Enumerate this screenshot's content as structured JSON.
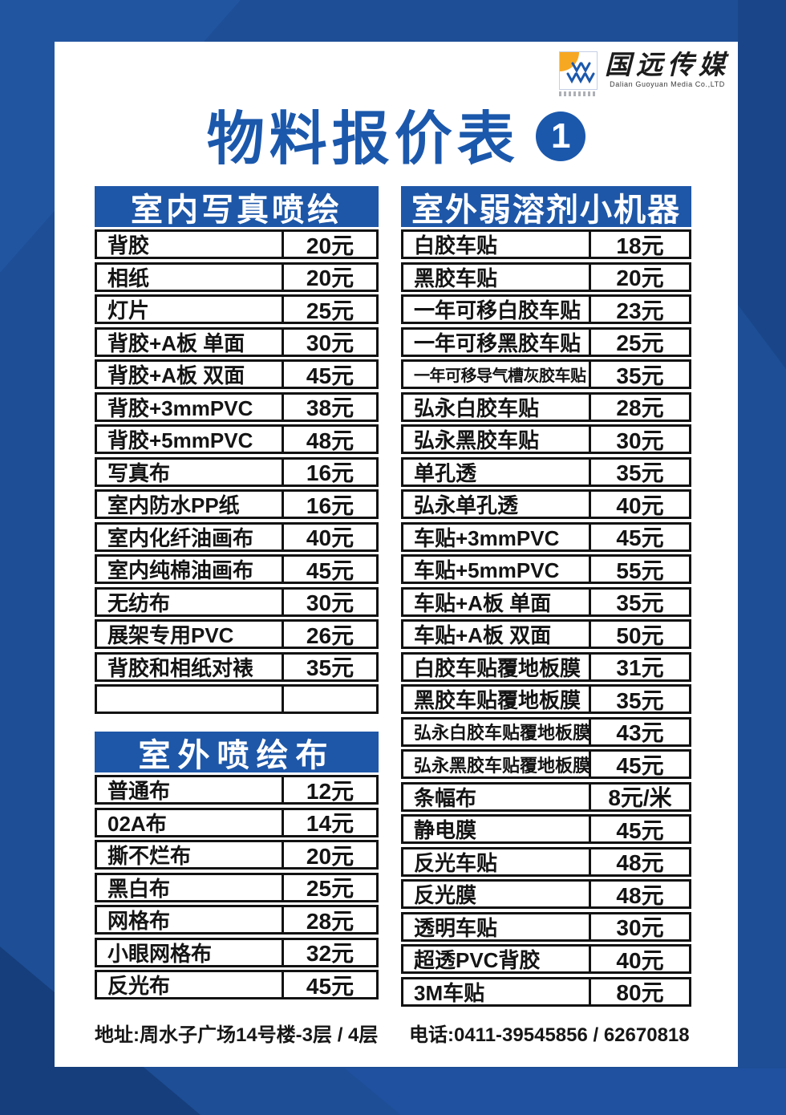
{
  "page": {
    "title": "物料报价表",
    "badge": "1"
  },
  "logo": {
    "mark": "vvv-quarter-sun-logo",
    "brand_cn": "国远传媒",
    "brand_en": "Dalian Guoyuan Media Co.,LTD"
  },
  "tables": {
    "indoor": {
      "header": "室内写真喷绘",
      "rows": [
        {
          "item": "背胶",
          "price": "20元"
        },
        {
          "item": "相纸",
          "price": "20元"
        },
        {
          "item": "灯片",
          "price": "25元"
        },
        {
          "item": "背胶+A板 单面",
          "price": "30元"
        },
        {
          "item": "背胶+A板 双面",
          "price": "45元"
        },
        {
          "item": "背胶+3mmPVC",
          "price": "38元"
        },
        {
          "item": "背胶+5mmPVC",
          "price": "48元"
        },
        {
          "item": "写真布",
          "price": "16元"
        },
        {
          "item": "室内防水PP纸",
          "price": "16元"
        },
        {
          "item": "室内化纤油画布",
          "price": "40元"
        },
        {
          "item": "室内纯棉油画布",
          "price": "45元"
        },
        {
          "item": "无纺布",
          "price": "30元"
        },
        {
          "item": "展架专用PVC",
          "price": "26元"
        },
        {
          "item": "背胶和相纸对裱",
          "price": "35元"
        },
        {
          "item": "",
          "price": ""
        }
      ]
    },
    "cloth": {
      "header": "室外喷绘布",
      "rows": [
        {
          "item": "普通布",
          "price": "12元"
        },
        {
          "item": "02A布",
          "price": "14元"
        },
        {
          "item": "撕不烂布",
          "price": "20元"
        },
        {
          "item": "黑白布",
          "price": "25元"
        },
        {
          "item": "网格布",
          "price": "28元"
        },
        {
          "item": "小眼网格布",
          "price": "32元"
        },
        {
          "item": "反光布",
          "price": "45元"
        }
      ]
    },
    "solvent": {
      "header": "室外弱溶剂小机器",
      "rows": [
        {
          "item": "白胶车贴",
          "price": "18元"
        },
        {
          "item": "黑胶车贴",
          "price": "20元"
        },
        {
          "item": "一年可移白胶车贴",
          "price": "23元"
        },
        {
          "item": "一年可移黑胶车贴",
          "price": "25元"
        },
        {
          "item": "一年可移导气槽灰胶车贴",
          "price": "35元"
        },
        {
          "item": "弘永白胶车贴",
          "price": "28元"
        },
        {
          "item": "弘永黑胶车贴",
          "price": "30元"
        },
        {
          "item": "单孔透",
          "price": "35元"
        },
        {
          "item": "弘永单孔透",
          "price": "40元"
        },
        {
          "item": "车贴+3mmPVC",
          "price": "45元"
        },
        {
          "item": "车贴+5mmPVC",
          "price": "55元"
        },
        {
          "item": "车贴+A板 单面",
          "price": "35元"
        },
        {
          "item": "车贴+A板 双面",
          "price": "50元"
        },
        {
          "item": "白胶车贴覆地板膜",
          "price": "31元"
        },
        {
          "item": "黑胶车贴覆地板膜",
          "price": "35元"
        },
        {
          "item": "弘永白胶车贴覆地板膜",
          "price": "43元"
        },
        {
          "item": "弘永黑胶车贴覆地板膜",
          "price": "45元"
        },
        {
          "item": "条幅布",
          "price": "8元/米"
        },
        {
          "item": "静电膜",
          "price": "45元"
        },
        {
          "item": "反光车贴",
          "price": "48元"
        },
        {
          "item": "反光膜",
          "price": "48元"
        },
        {
          "item": "透明车贴",
          "price": "30元"
        },
        {
          "item": "超透PVC背胶",
          "price": "40元"
        },
        {
          "item": "3M车贴",
          "price": "80元"
        }
      ]
    }
  },
  "footer": {
    "address": "地址:周水子广场14号楼-3层 / 4层",
    "phone": "电话:0411-39545856 / 62670818"
  },
  "colors": {
    "base_blue": "#1d4e96",
    "header_blue": "#1e57a8",
    "title_blue": "#1b58ac",
    "logo_orange": "#f7a823",
    "table_border_black": "#121212"
  }
}
